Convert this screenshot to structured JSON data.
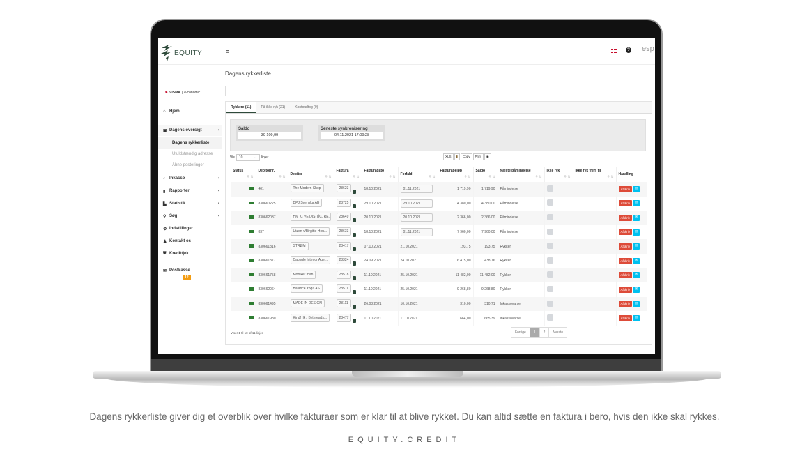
{
  "app": {
    "logo_text": "EQUITY",
    "menu_icon": "hamburger-icon",
    "lang_flag": "danish-flag-icon",
    "help_icon": "question-icon",
    "cut_text": "esp"
  },
  "page_title": "Dagens rykkerliste",
  "integration": {
    "brand": "VISMA",
    "product": "e-conomic"
  },
  "sidebar": {
    "items": [
      {
        "label": "Hjem",
        "icon": "home-icon"
      },
      {
        "label": "Dagens oversigt",
        "icon": "dashboard-icon",
        "expanded": true
      },
      {
        "label": "Dagens rykkerliste",
        "active": true
      },
      {
        "label": "Ufuldstændig adresse"
      },
      {
        "label": "Åbne posteringer"
      },
      {
        "label": "Inkasso",
        "icon": "bell-icon"
      },
      {
        "label": "Rapporter",
        "icon": "clipboard-icon"
      },
      {
        "label": "Statistik",
        "icon": "chart-icon"
      },
      {
        "label": "Søg",
        "icon": "search-icon"
      },
      {
        "label": "Indstillinger",
        "icon": "gears-icon"
      },
      {
        "label": "Kontakt os",
        "icon": "user-icon"
      },
      {
        "label": "Kredittjek",
        "icon": "shield-icon"
      },
      {
        "label": "Postkasse",
        "icon": "envelope-icon",
        "badge": "12"
      }
    ]
  },
  "tabs": [
    {
      "label": "Rykkere (11)",
      "active": true
    },
    {
      "label": "På ikke ryk (21)"
    },
    {
      "label": "Kontoudtog (0)"
    }
  ],
  "summary": {
    "saldo_label": "Saldo",
    "saldo_value": "39 109,99",
    "sync_label": "Seneste synkronisering",
    "sync_value": "04.11.2021 17:09:28"
  },
  "length": {
    "prefix": "Vis",
    "value": "10",
    "suffix": "linjer"
  },
  "export": {
    "xls": "XLS",
    "copy": "Copy",
    "print": "Print"
  },
  "table": {
    "columns": [
      "Status",
      "Debitornr.",
      "Debitor",
      "Faktura",
      "Fakturadato",
      "Forfald",
      "Fakturabeløb",
      "Saldo",
      "Næste påmindelse",
      "Ikke ryk",
      "Ikke ryk frem til",
      "Handling"
    ],
    "action_label": "Afskriv",
    "rows": [
      {
        "debnr": "401",
        "debitor": "The Modern Shop",
        "faktura": "28623",
        "dato": "18.10.2021",
        "forfald": "01.11.2021",
        "forfald_editable": true,
        "belob": "1 719,90",
        "saldo": "1 719,90",
        "naeste": "Påmindelse"
      },
      {
        "debnr": "830660225",
        "debitor": "DPJ Svenska AB",
        "faktura": "28725",
        "dato": "29.10.2021",
        "forfald": "29.10.2021",
        "forfald_editable": true,
        "belob": "4 380,00",
        "saldo": "4 380,00",
        "naeste": "Påmindelse"
      },
      {
        "debnr": "830662037",
        "debitor": "HM İÇ VE DIŞ TİC. RE...",
        "faktura": "28649",
        "dato": "20.10.2021",
        "forfald": "20.10.2021",
        "forfald_editable": true,
        "belob": "2 366,00",
        "saldo": "2 366,00",
        "naeste": "Påmindelse"
      },
      {
        "debnr": "837",
        "debitor": "Utzon v/Birgitte Hou...",
        "faktura": "28633",
        "dato": "18.10.2021",
        "forfald": "01.11.2021",
        "forfald_editable": true,
        "belob": "7 960,00",
        "saldo": "7 960,00",
        "naeste": "Påmindelse"
      },
      {
        "debnr": "830661316",
        "debitor": "STRØM",
        "faktura": "28417",
        "dato": "07.10.2021",
        "forfald": "21.10.2021",
        "belob": "193,75",
        "saldo": "193,75",
        "naeste": "Rykker"
      },
      {
        "debnr": "830661377",
        "debitor": "Capsule Interior Age...",
        "faktura": "28324",
        "dato": "24.09.2021",
        "forfald": "24.10.2021",
        "belob": "6 475,00",
        "saldo": "438,76",
        "naeste": "Rykker"
      },
      {
        "debnr": "830661758",
        "debitor": "Moniker man",
        "faktura": "28518",
        "dato": "11.10.2021",
        "forfald": "25.10.2021",
        "belob": "11 482,00",
        "saldo": "11 482,00",
        "naeste": "Rykker"
      },
      {
        "debnr": "830662064",
        "debitor": "Balance Yoga AS",
        "faktura": "28511",
        "dato": "11.10.2021",
        "forfald": "25.10.2021",
        "belob": "9 268,80",
        "saldo": "9 268,80",
        "naeste": "Rykker"
      },
      {
        "debnr": "830661495",
        "debitor": "MADE IN DESIGN",
        "faktura": "28111",
        "dato": "26.08.2021",
        "forfald": "10.10.2021",
        "belob": "310,00",
        "saldo": "310,71",
        "naeste": "Inkassovarsel"
      },
      {
        "debnr": "830661980",
        "debitor": "Kindf_lk / Bythreads...",
        "faktura": "28477",
        "dato": "11.10.2021",
        "forfald": "11.10.2021",
        "belob": "664,00",
        "saldo": "665,39",
        "naeste": "Inkassovarsel"
      }
    ]
  },
  "footer": {
    "info": "Viser 1 til 10 af 11 linjer",
    "prev": "Forrige",
    "pages": [
      "1",
      "2"
    ],
    "current": "1",
    "next": "Næste"
  },
  "caption": "Dagens rykkerliste giver dig et overblik over hvilke fakturaer som er klar til at blive rykket. Du kan altid sætte en faktura i bero, hvis den ikke skal rykkes.",
  "brand_line": "EQUITY.CREDIT",
  "colors": {
    "brand_green": "#2e4a3a",
    "danger": "#dd4b39",
    "info": "#00c0ef",
    "badge": "#f39c12"
  }
}
